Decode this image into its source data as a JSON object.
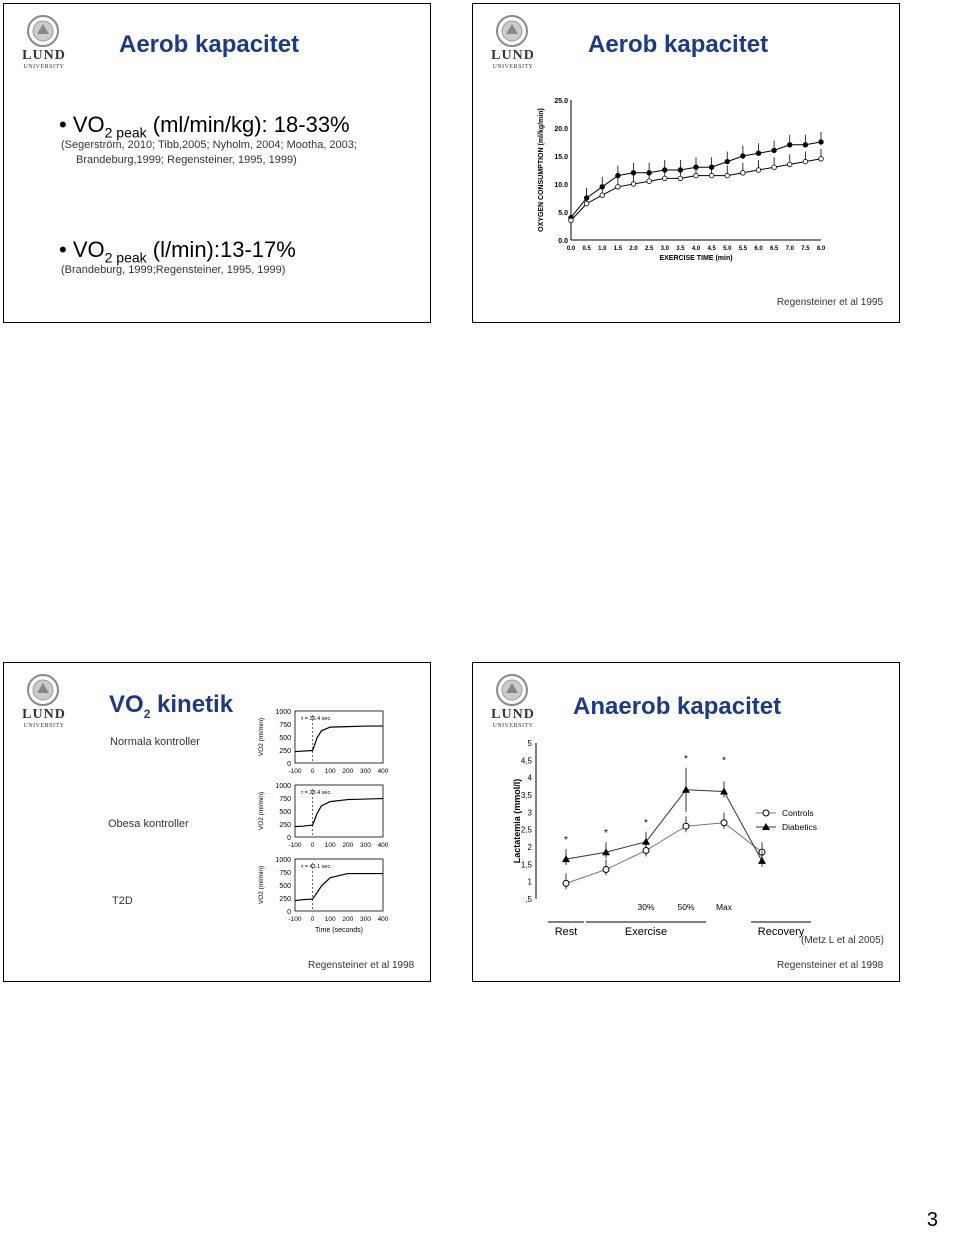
{
  "logo": {
    "word1": "LUND",
    "word2": "UNIVERSITY"
  },
  "slide1": {
    "title": "Aerob kapacitet",
    "bullet1_main": "VO",
    "bullet1_sub": "2 peak",
    "bullet1_rest": " (ml/min/kg): 18-33%",
    "bullet1_ref_line1": "(Segerström, 2010; Tibb,2005; Nyholm, 2004; Mootha, 2003;",
    "bullet1_ref_line2": "Brandeburg,1999; Regensteiner, 1995, 1999)",
    "bullet2_main": "VO",
    "bullet2_sub": "2 peak",
    "bullet2_rest": " (l/min):13-17%",
    "bullet2_ref": "(Brandeburg, 1999;Regensteiner, 1995, 1999)"
  },
  "slide2": {
    "title": "Aerob kapacitet",
    "citation": "Regensteiner et al 1995",
    "chart_data": {
      "type": "line",
      "xlabel": "EXERCISE TIME (min)",
      "ylabel": "OXYGEN CONSUMPTION (ml/kg/min)",
      "x": [
        0,
        0.5,
        1,
        1.5,
        2,
        2.5,
        3,
        3.5,
        4,
        4.5,
        5,
        5.5,
        6,
        6.5,
        7,
        7.5,
        8
      ],
      "xticks": [
        "0.0",
        "0.5",
        "1.0",
        "1.5",
        "2.0",
        "2.5",
        "3.0",
        "3.5",
        "4.0",
        "4.5",
        "5.0",
        "5.5",
        "6.0",
        "6.5",
        "7.0",
        "7.5",
        "8.0"
      ],
      "yticks": [
        "0.0",
        "5.0",
        "10.0",
        "15.0",
        "20.0",
        "25.0"
      ],
      "ylim": [
        0,
        25
      ],
      "series": [
        {
          "values": [
            4,
            7.5,
            9.5,
            11.5,
            12,
            12,
            12.5,
            12.5,
            13,
            13,
            14,
            15,
            15.5,
            16,
            17,
            17,
            17.5
          ]
        },
        {
          "values": [
            3.5,
            6.5,
            8,
            9.5,
            10,
            10.5,
            11,
            11,
            11.5,
            11.5,
            11.5,
            12,
            12.5,
            13,
            13.5,
            14,
            14.5
          ]
        }
      ]
    }
  },
  "slide3": {
    "title_main": "VO",
    "title_sub": "2",
    "title_rest": " kinetik",
    "label1": "Normala kontroller",
    "label2": "Obesa kontroller",
    "label3": "T2D",
    "citation": "Regensteiner et al 1998",
    "chart_data": [
      {
        "type": "line",
        "title": "τ = 26.4 sec.",
        "ylabel": "VO2 (ml/min)",
        "yticks": [
          "0",
          "250",
          "500",
          "750",
          "1000"
        ],
        "xticks": [
          "-100",
          "0",
          "100",
          "200",
          "300",
          "400"
        ],
        "ylim": [
          0,
          1000
        ],
        "x": [
          -100,
          -50,
          0,
          25,
          50,
          100,
          200,
          300,
          400
        ],
        "values": [
          220,
          230,
          240,
          480,
          620,
          690,
          700,
          710,
          710
        ]
      },
      {
        "type": "line",
        "title": "τ = 28.4 sec.",
        "ylabel": "VO2 (ml/min)",
        "yticks": [
          "0",
          "250",
          "500",
          "750",
          "1000"
        ],
        "xticks": [
          "-100",
          "0",
          "100",
          "200",
          "300",
          "400"
        ],
        "ylim": [
          0,
          1000
        ],
        "x": [
          -100,
          -50,
          0,
          25,
          50,
          100,
          200,
          300,
          400
        ],
        "values": [
          200,
          210,
          230,
          450,
          600,
          680,
          720,
          730,
          740
        ]
      },
      {
        "type": "line",
        "title": "τ = 43.1 sec.",
        "ylabel": "VO2 (ml/min)",
        "xlabel": "Time (seconds)",
        "yticks": [
          "0",
          "250",
          "500",
          "750",
          "1000"
        ],
        "xticks": [
          "-100",
          "0",
          "100",
          "200",
          "300",
          "400"
        ],
        "ylim": [
          0,
          1000
        ],
        "x": [
          -100,
          -50,
          0,
          25,
          50,
          100,
          200,
          300,
          400
        ],
        "values": [
          200,
          220,
          230,
          350,
          480,
          640,
          720,
          720,
          720
        ]
      }
    ]
  },
  "slide4": {
    "title": "Anaerob kapacitet",
    "source": "(Metz L et al 2005)",
    "citation": "Regensteiner et al 1998",
    "chart_data": {
      "type": "line",
      "ylabel": "Lactatemia (mmol/l)",
      "yticks": [
        "5",
        "4,5",
        "4",
        "3,5",
        "3",
        "2,5",
        "2",
        "1,5",
        "1",
        ",5"
      ],
      "ylim": [
        0.5,
        5
      ],
      "categories": [
        "Rest",
        "30%",
        "50%",
        "Max",
        "",
        "Recovery"
      ],
      "group_labels": [
        "Rest",
        "Exercise",
        "Recovery"
      ],
      "stage_labels": [
        "30%",
        "50%",
        "Max"
      ],
      "series": [
        {
          "name": "Controls",
          "marker": "open-circle",
          "values": [
            0.95,
            1.35,
            1.9,
            2.6,
            2.7,
            1.85
          ]
        },
        {
          "name": "Diabetics",
          "marker": "filled-triangle",
          "values": [
            1.65,
            1.85,
            2.15,
            3.65,
            3.6,
            1.6
          ]
        }
      ],
      "asterisk": "*"
    }
  },
  "page_number": "3"
}
